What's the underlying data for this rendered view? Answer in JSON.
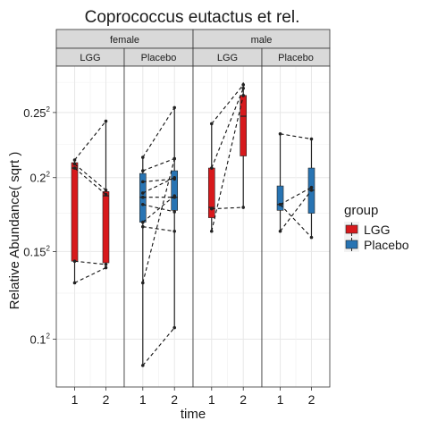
{
  "chart_data": {
    "type": "boxplot",
    "title": "Coprococcus eutactus et rel.",
    "xlabel": "time",
    "ylabel": "Relative Abundance( sqrt )",
    "y_scale": "sqrt",
    "y_ticks": [
      {
        "value": 0.1,
        "base": "0.1",
        "exp": "2"
      },
      {
        "value": 0.15,
        "base": "0.15",
        "exp": "2"
      },
      {
        "value": 0.2,
        "base": "0.2",
        "exp": "2"
      },
      {
        "value": 0.25,
        "base": "0.25",
        "exp": "2"
      }
    ],
    "ylim": [
      0.077,
      0.289
    ],
    "x_ticks": [
      "1",
      "2"
    ],
    "grid": true,
    "facet_rows": [
      "female",
      "male"
    ],
    "legend": {
      "title": "group",
      "position": "right",
      "entries": [
        {
          "name": "LGG",
          "color": "#d7191c"
        },
        {
          "name": "Placebo",
          "color": "#2874b3"
        }
      ]
    },
    "panels": [
      {
        "sex": "female",
        "group": "LGG",
        "color": "#d7191c",
        "boxes": [
          {
            "time": "1",
            "min": 0.131,
            "q1": 0.144,
            "median": 0.207,
            "q3": 0.211,
            "max": 0.213
          },
          {
            "time": "2",
            "min": 0.14,
            "q1": 0.143,
            "median": 0.187,
            "q3": 0.19,
            "max": 0.243
          }
        ],
        "pairs": [
          [
            0.213,
            0.243
          ],
          [
            0.21,
            0.191
          ],
          [
            0.207,
            0.188
          ],
          [
            0.144,
            0.142
          ],
          [
            0.131,
            0.14
          ]
        ]
      },
      {
        "sex": "female",
        "group": "Placebo",
        "color": "#2874b3",
        "boxes": [
          {
            "time": "1",
            "min": 0.087,
            "q1": 0.169,
            "median": 0.186,
            "q3": 0.203,
            "max": 0.215
          },
          {
            "time": "2",
            "min": 0.106,
            "q1": 0.177,
            "median": 0.186,
            "q3": 0.205,
            "max": 0.254
          }
        ],
        "pairs": [
          [
            0.215,
            0.254
          ],
          [
            0.205,
            0.214
          ],
          [
            0.197,
            0.199
          ],
          [
            0.189,
            0.2
          ],
          [
            0.186,
            0.186
          ],
          [
            0.181,
            0.176
          ],
          [
            0.169,
            0.187
          ],
          [
            0.166,
            0.163
          ],
          [
            0.131,
            0.214
          ],
          [
            0.087,
            0.106
          ]
        ]
      },
      {
        "sex": "male",
        "group": "LGG",
        "color": "#d7191c",
        "boxes": [
          {
            "time": "1",
            "min": 0.163,
            "q1": 0.172,
            "median": 0.179,
            "q3": 0.207,
            "max": 0.241
          },
          {
            "time": "2",
            "min": 0.179,
            "q1": 0.216,
            "median": 0.247,
            "q3": 0.264,
            "max": 0.275
          }
        ],
        "pairs": [
          [
            0.241,
            0.273
          ],
          [
            0.207,
            0.27
          ],
          [
            0.178,
            0.179
          ],
          [
            0.163,
            0.264
          ]
        ]
      },
      {
        "sex": "male",
        "group": "Placebo",
        "color": "#2874b3",
        "boxes": [
          {
            "time": "1",
            "min": 0.163,
            "q1": 0.177,
            "median": 0.181,
            "q3": 0.194,
            "max": 0.233
          },
          {
            "time": "2",
            "min": 0.159,
            "q1": 0.175,
            "median": 0.191,
            "q3": 0.207,
            "max": 0.229
          }
        ],
        "pairs": [
          [
            0.233,
            0.229
          ],
          [
            0.181,
            0.193
          ],
          [
            0.163,
            0.191
          ],
          [
            0.181,
            0.159
          ]
        ]
      }
    ]
  }
}
